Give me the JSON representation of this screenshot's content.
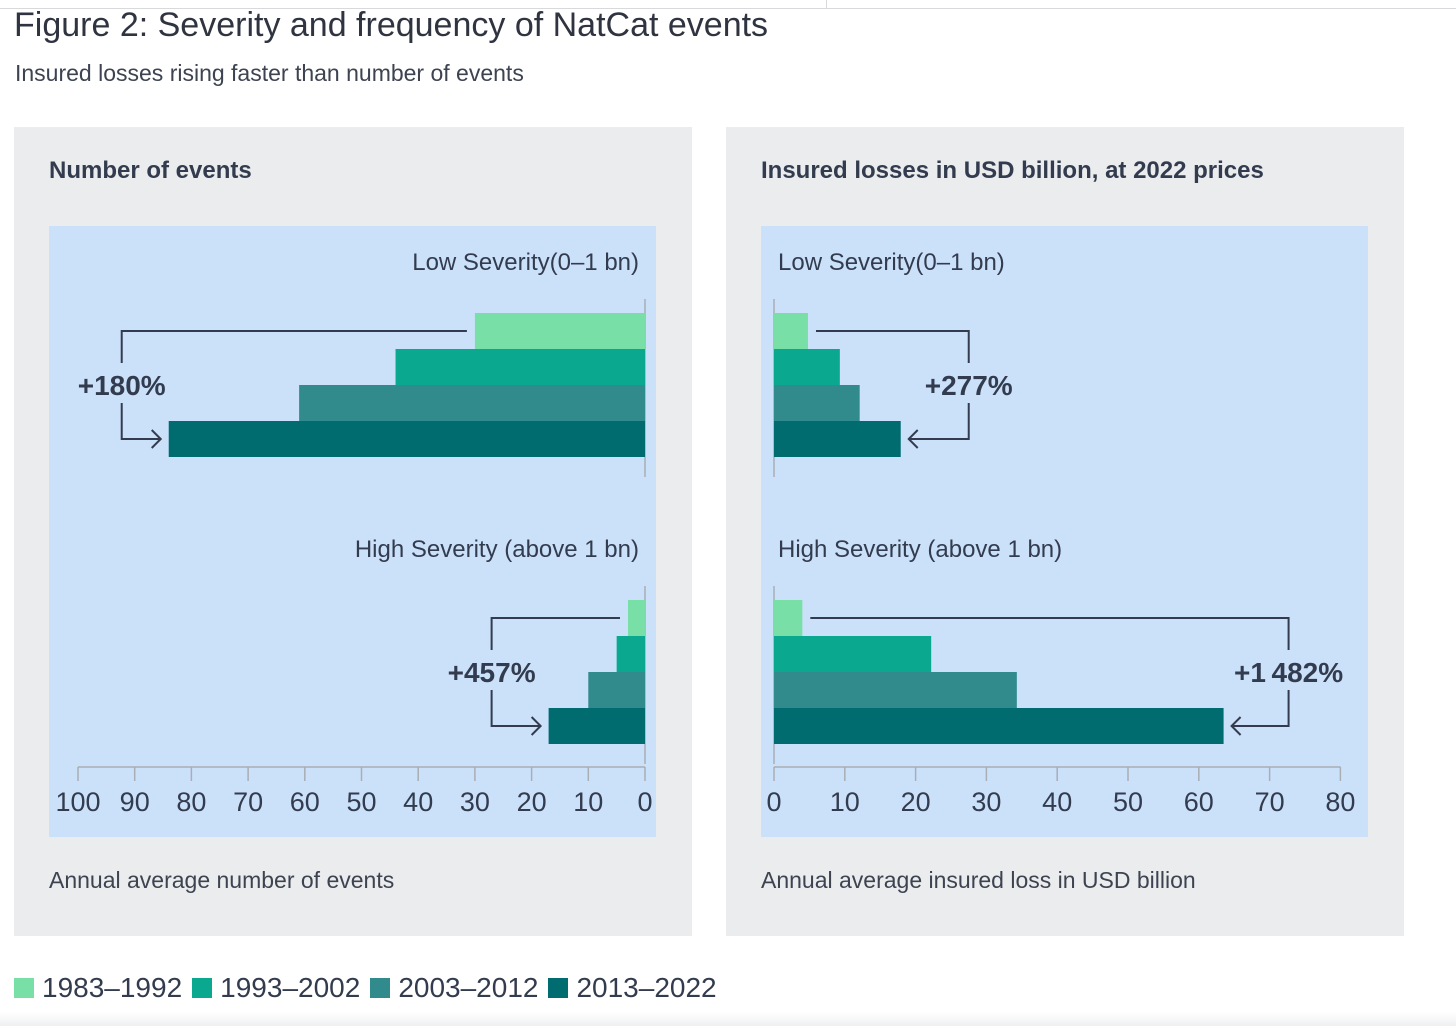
{
  "figure": {
    "title": "Figure 2: Severity and frequency of NatCat events",
    "subtitle": "Insured losses rising faster than number of events"
  },
  "legend": [
    {
      "label": "1983–1992",
      "color": "#78e0a6"
    },
    {
      "label": "1993–2002",
      "color": "#0aa88e"
    },
    {
      "label": "2003–2012",
      "color": "#318a8c"
    },
    {
      "label": "2013–2022",
      "color": "#006c70"
    }
  ],
  "panels": {
    "left": {
      "title": "Number of events",
      "footnote": "Annual average number of events"
    },
    "right": {
      "title": "Insured losses in USD billion, at 2022 prices",
      "footnote": "Annual average insured loss in USD billion"
    }
  },
  "chart_data": [
    {
      "type": "bar",
      "orientation": "horizontal",
      "direction": "reversed",
      "title": "Number of events",
      "xlabel": "Annual average number of events",
      "xlim": [
        0,
        100
      ],
      "xticks": [
        0,
        10,
        20,
        30,
        40,
        50,
        60,
        70,
        80,
        90,
        100
      ],
      "grid": false,
      "series_names": [
        "1983–1992",
        "1993–2002",
        "2003–2012",
        "2013–2022"
      ],
      "groups": [
        {
          "label": "Low Severity(0–1 bn)",
          "values": [
            30,
            44,
            61,
            84
          ],
          "annotation": "+180%"
        },
        {
          "label": "High Severity (above 1 bn)",
          "values": [
            3,
            5,
            10,
            17
          ],
          "annotation": "+457%"
        }
      ]
    },
    {
      "type": "bar",
      "orientation": "horizontal",
      "title": "Insured losses in USD billion, at 2022 prices",
      "xlabel": "Annual average insured loss in USD billion",
      "xlim": [
        0,
        80
      ],
      "xticks": [
        0,
        10,
        20,
        30,
        40,
        50,
        60,
        70,
        80
      ],
      "grid": false,
      "series_names": [
        "1983–1992",
        "1993–2002",
        "2003–2012",
        "2013–2022"
      ],
      "groups": [
        {
          "label": "Low Severity(0–1 bn)",
          "values": [
            4.8,
            9.3,
            12.1,
            17.9
          ],
          "annotation": "+277%"
        },
        {
          "label": "High Severity (above 1 bn)",
          "values": [
            4,
            22.2,
            34.3,
            63.5
          ],
          "annotation": "+1 482%"
        }
      ]
    }
  ]
}
